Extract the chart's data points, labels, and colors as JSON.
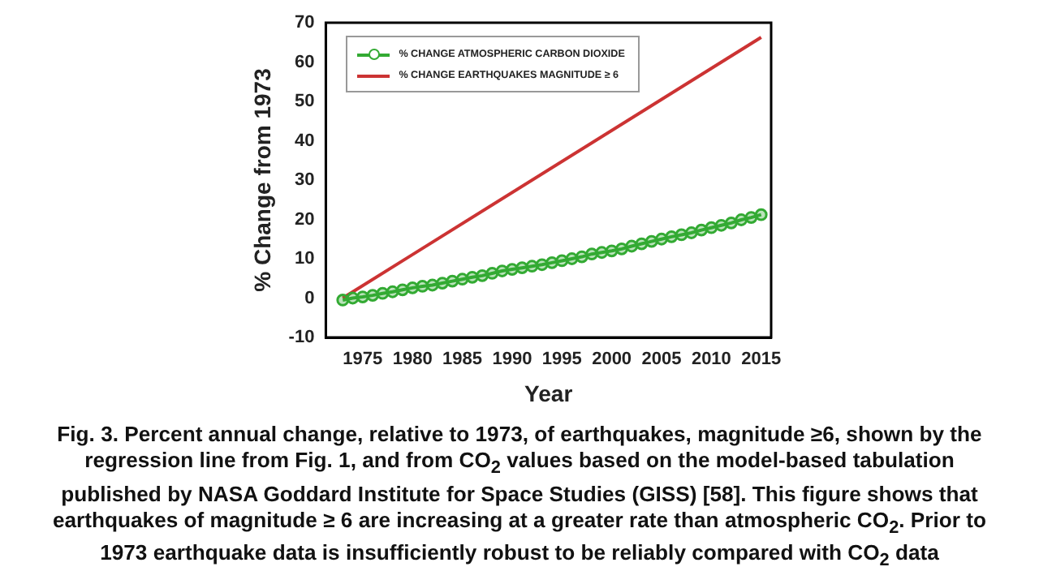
{
  "chart_data": {
    "type": "line",
    "xlabel": "Year",
    "ylabel": "% Change from 1973",
    "xlim": [
      1971.3,
      2016
    ],
    "xticks": [
      1975,
      1980,
      1985,
      1990,
      1995,
      2000,
      2005,
      2010,
      2015
    ],
    "ylim": [
      -10,
      70
    ],
    "yticks": [
      -10,
      0,
      10,
      20,
      30,
      40,
      50,
      60,
      70
    ],
    "grid": false,
    "legend": "top left",
    "series": [
      {
        "name": "% CHANGE ATMOSPHERIC CARBON DIOXIDE",
        "color": "#33aa33",
        "marker": "circle",
        "x": [
          1973,
          1974,
          1975,
          1976,
          1977,
          1978,
          1979,
          1980,
          1981,
          1982,
          1983,
          1984,
          1985,
          1986,
          1987,
          1988,
          1989,
          1990,
          1991,
          1992,
          1993,
          1994,
          1995,
          1996,
          1997,
          1998,
          1999,
          2000,
          2001,
          2002,
          2003,
          2004,
          2005,
          2006,
          2007,
          2008,
          2009,
          2010,
          2011,
          2012,
          2013,
          2014,
          2015
        ],
        "values": [
          -0.5,
          0,
          0.3,
          0.7,
          1.2,
          1.6,
          2.1,
          2.6,
          3.0,
          3.3,
          3.8,
          4.3,
          4.8,
          5.3,
          5.7,
          6.3,
          6.9,
          7.3,
          7.7,
          8.1,
          8.5,
          9.0,
          9.5,
          10.0,
          10.5,
          11.2,
          11.6,
          12.0,
          12.5,
          13.2,
          13.8,
          14.4,
          15.0,
          15.6,
          16.1,
          16.6,
          17.3,
          17.9,
          18.5,
          19.1,
          19.9,
          20.5,
          21.2
        ]
      },
      {
        "name": "% CHANGE EARTHQUAKES MAGNITUDE ≥ 6",
        "color": "#cc3333",
        "marker": "none",
        "x": [
          1973,
          2015
        ],
        "values": [
          0,
          66.3
        ]
      }
    ],
    "annotations": [
      "Fig. 3. Percent annual change, relative to 1973, of earthquakes, magnitude ≥6, shown by the regression line from Fig. 1, and from CO$_{2}$ values based on the model-based tabulation published by NASA Goddard Institute for Space Studies (GISS) [58]. This figure shows that earthquakes of magnitude ≥ 6 are increasing at a greater rate than atmospheric CO$_{2}$. Prior to 1973 earthquake data is insufficiently robust to be reliably compared with CO$_{2}$ data"
    ]
  }
}
